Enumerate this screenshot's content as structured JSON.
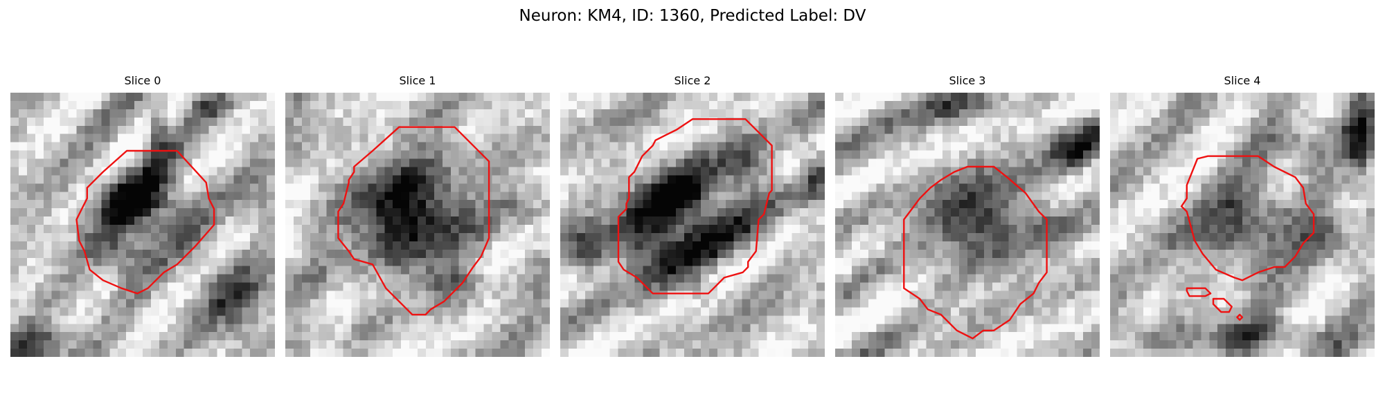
{
  "figure": {
    "title": "Neuron: KM4, ID: 1360, Predicted Label: DV"
  },
  "colors": {
    "contour": "#ee1111",
    "background": "#ffffff"
  },
  "panels": [
    {
      "title": "Slice 0"
    },
    {
      "title": "Slice 1"
    },
    {
      "title": "Slice 2"
    },
    {
      "title": "Slice 3"
    },
    {
      "title": "Slice 4"
    }
  ]
}
